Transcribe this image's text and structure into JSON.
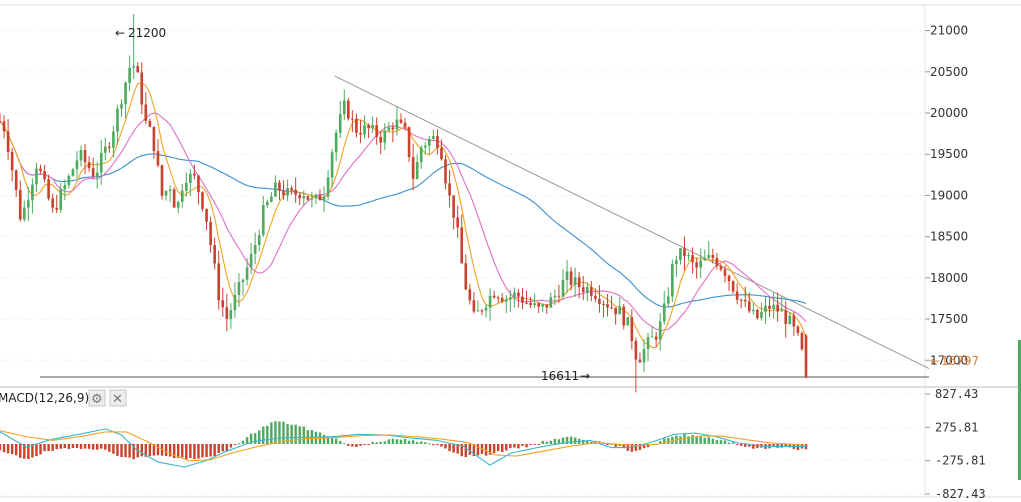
{
  "chart_data": [
    {
      "type": "candlestick",
      "y_ticks": [
        17000,
        17500,
        18000,
        18500,
        19000,
        19500,
        20000,
        20500,
        21000
      ],
      "ylim": [
        16700,
        21250
      ],
      "grid": true,
      "candle_count": 200,
      "anchors": [
        [
          0,
          19900
        ],
        [
          2,
          19800
        ],
        [
          8,
          18700
        ],
        [
          14,
          19400
        ],
        [
          20,
          18800
        ],
        [
          26,
          19200
        ],
        [
          30,
          19500
        ],
        [
          36,
          19250
        ],
        [
          42,
          19700
        ],
        [
          47,
          20300
        ],
        [
          50,
          20650
        ],
        [
          53,
          20350
        ],
        [
          55,
          19900
        ],
        [
          58,
          19700
        ],
        [
          62,
          18900
        ],
        [
          64,
          19200
        ],
        [
          67,
          18800
        ],
        [
          70,
          19250
        ],
        [
          74,
          19200
        ],
        [
          78,
          18800
        ],
        [
          83,
          17800
        ],
        [
          86,
          17500
        ],
        [
          90,
          17800
        ],
        [
          96,
          18300
        ],
        [
          100,
          18800
        ],
        [
          105,
          19100
        ],
        [
          110,
          19000
        ],
        [
          115,
          19050
        ],
        [
          119,
          18900
        ],
        [
          123,
          19050
        ],
        [
          127,
          19700
        ],
        [
          131,
          20100
        ],
        [
          135,
          19800
        ],
        [
          140,
          19800
        ],
        [
          145,
          19700
        ],
        [
          150,
          19900
        ],
        [
          154,
          19750
        ],
        [
          157,
          19200
        ],
        [
          160,
          19600
        ],
        [
          164,
          19700
        ],
        [
          167,
          19650
        ],
        [
          170,
          19050
        ],
        [
          173,
          18700
        ],
        [
          176,
          18000
        ],
        [
          180,
          17500
        ],
        [
          184,
          17700
        ],
        [
          188,
          17850
        ],
        [
          192,
          17750
        ],
        [
          196,
          17800
        ],
        [
          200,
          17700
        ],
        [
          205,
          17600
        ],
        [
          210,
          17750
        ],
        [
          215,
          18000
        ],
        [
          220,
          17900
        ],
        [
          225,
          17850
        ],
        [
          230,
          17700
        ],
        [
          235,
          17600
        ],
        [
          239,
          17400
        ],
        [
          242,
          17000
        ],
        [
          246,
          17200
        ],
        [
          250,
          17350
        ],
        [
          253,
          17700
        ],
        [
          256,
          18250
        ],
        [
          260,
          18300
        ],
        [
          264,
          18100
        ],
        [
          267,
          18200
        ],
        [
          271,
          18250
        ],
        [
          275,
          18100
        ],
        [
          279,
          17850
        ],
        [
          283,
          17650
        ],
        [
          287,
          17500
        ],
        [
          292,
          17650
        ],
        [
          296,
          17600
        ],
        [
          300,
          17450
        ],
        [
          303,
          17250
        ],
        [
          306,
          16900
        ]
      ],
      "sma_short_color": "#f2a324",
      "sma_mid_color": "#e070c8",
      "sma_long_color": "#3a8fd0",
      "trendline": {
        "from": [
          20450,
          0
        ],
        "to": [
          16900,
          1
        ]
      },
      "support_level": 16797,
      "up_color": "#4daa5f",
      "down_color": "#c8432e",
      "annotations": {
        "high": "21200",
        "low": "16611",
        "last": "16797"
      }
    },
    {
      "type": "histogram",
      "indicator": "MACD(12,26,9)",
      "y_ticks": [
        "827.43",
        "275.81",
        "-275.81",
        "-827.43"
      ],
      "hist_anchors": [
        [
          0,
          -120
        ],
        [
          10,
          -250
        ],
        [
          18,
          -120
        ],
        [
          30,
          -60
        ],
        [
          38,
          -80
        ],
        [
          46,
          -200
        ],
        [
          50,
          -250
        ],
        [
          58,
          -180
        ],
        [
          66,
          -220
        ],
        [
          74,
          -260
        ],
        [
          80,
          -200
        ],
        [
          86,
          -120
        ],
        [
          94,
          120
        ],
        [
          104,
          380
        ],
        [
          112,
          320
        ],
        [
          120,
          200
        ],
        [
          126,
          120
        ],
        [
          134,
          -60
        ],
        [
          142,
          40
        ],
        [
          152,
          80
        ],
        [
          160,
          30
        ],
        [
          168,
          -50
        ],
        [
          176,
          -200
        ],
        [
          184,
          -180
        ],
        [
          192,
          -100
        ],
        [
          200,
          -40
        ],
        [
          210,
          80
        ],
        [
          218,
          120
        ],
        [
          226,
          40
        ],
        [
          234,
          -30
        ],
        [
          240,
          -120
        ],
        [
          246,
          -50
        ],
        [
          252,
          80
        ],
        [
          260,
          150
        ],
        [
          266,
          130
        ],
        [
          272,
          80
        ],
        [
          278,
          30
        ],
        [
          284,
          -60
        ],
        [
          290,
          -80
        ],
        [
          296,
          -40
        ],
        [
          303,
          -90
        ],
        [
          306,
          -90
        ]
      ],
      "macd_color": "#3ab8c8",
      "signal_color": "#f2a324",
      "macd_anchors": [
        [
          0,
          200
        ],
        [
          10,
          -50
        ],
        [
          20,
          80
        ],
        [
          30,
          160
        ],
        [
          40,
          250
        ],
        [
          46,
          150
        ],
        [
          52,
          -100
        ],
        [
          60,
          -300
        ],
        [
          70,
          -380
        ],
        [
          78,
          -280
        ],
        [
          86,
          -120
        ],
        [
          96,
          40
        ],
        [
          106,
          100
        ],
        [
          116,
          110
        ],
        [
          126,
          120
        ],
        [
          136,
          160
        ],
        [
          146,
          150
        ],
        [
          156,
          100
        ],
        [
          166,
          60
        ],
        [
          176,
          -40
        ],
        [
          186,
          -350
        ],
        [
          194,
          -150
        ],
        [
          204,
          -60
        ],
        [
          214,
          20
        ],
        [
          224,
          60
        ],
        [
          232,
          -60
        ],
        [
          240,
          -60
        ],
        [
          248,
          40
        ],
        [
          256,
          160
        ],
        [
          264,
          180
        ],
        [
          272,
          120
        ],
        [
          280,
          20
        ],
        [
          290,
          -40
        ],
        [
          306,
          -40
        ]
      ],
      "signal_anchors": [
        [
          0,
          220
        ],
        [
          10,
          120
        ],
        [
          20,
          60
        ],
        [
          30,
          120
        ],
        [
          40,
          200
        ],
        [
          48,
          200
        ],
        [
          56,
          40
        ],
        [
          64,
          -150
        ],
        [
          72,
          -280
        ],
        [
          80,
          -260
        ],
        [
          88,
          -150
        ],
        [
          98,
          -40
        ],
        [
          108,
          50
        ],
        [
          118,
          90
        ],
        [
          128,
          110
        ],
        [
          138,
          140
        ],
        [
          148,
          150
        ],
        [
          158,
          120
        ],
        [
          168,
          80
        ],
        [
          178,
          20
        ],
        [
          188,
          -180
        ],
        [
          196,
          -200
        ],
        [
          206,
          -120
        ],
        [
          216,
          -40
        ],
        [
          226,
          20
        ],
        [
          234,
          0
        ],
        [
          242,
          -30
        ],
        [
          250,
          0
        ],
        [
          258,
          80
        ],
        [
          266,
          130
        ],
        [
          274,
          130
        ],
        [
          282,
          80
        ],
        [
          292,
          20
        ],
        [
          306,
          -20
        ]
      ]
    }
  ],
  "macd_toolbar": {
    "settings_icon": "gear-icon",
    "close_icon": "close-icon"
  }
}
